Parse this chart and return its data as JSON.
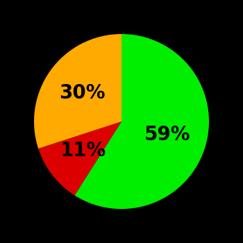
{
  "slices": [
    59,
    11,
    30
  ],
  "colors": [
    "#00ee00",
    "#dd0000",
    "#ffaa00"
  ],
  "labels": [
    "59%",
    "11%",
    "30%"
  ],
  "label_offsets": [
    0.55,
    0.55,
    0.55
  ],
  "background_color": "#000000",
  "startangle": 90,
  "counterclock": false,
  "figsize": [
    3.5,
    3.5
  ],
  "dpi": 100,
  "font_size": 20,
  "font_weight": "bold"
}
